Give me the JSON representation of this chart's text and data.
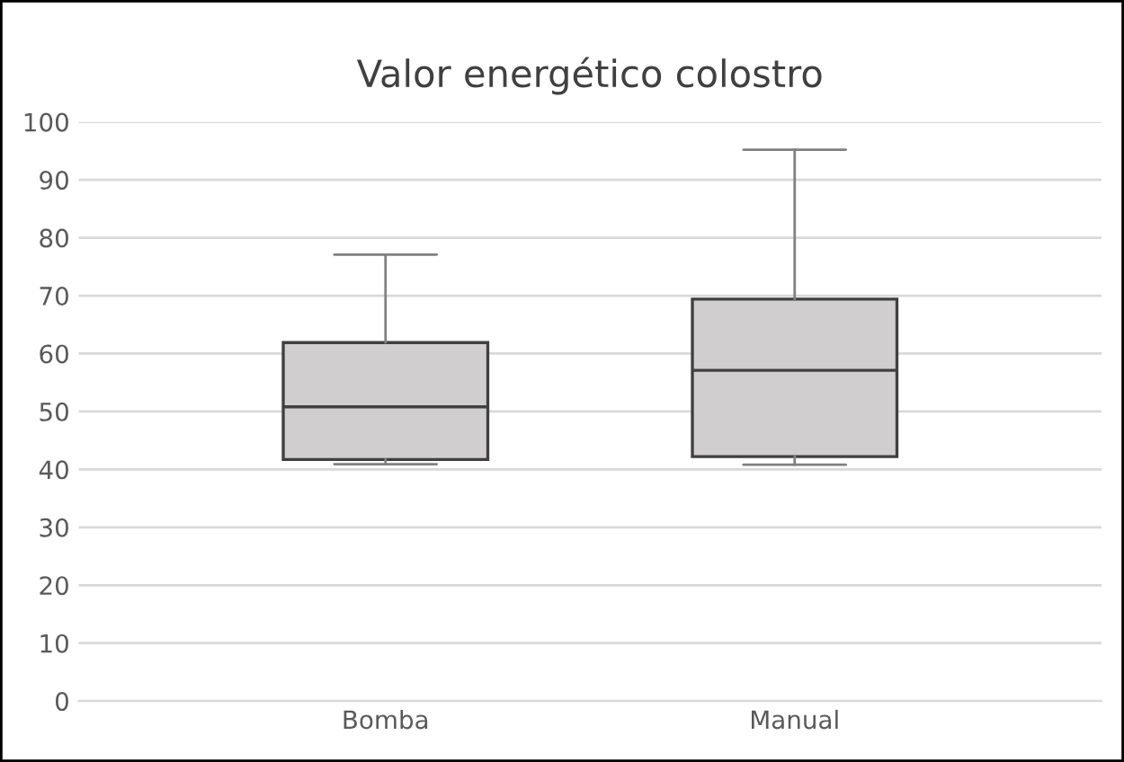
{
  "chart_data": {
    "type": "box",
    "title": "Valor energético colostro",
    "categories": [
      "Bomba",
      "Manual"
    ],
    "boxes": [
      {
        "low": 40.9,
        "q1": 41.7,
        "median": 50.8,
        "q3": 61.9,
        "high": 77.1
      },
      {
        "low": 40.8,
        "q1": 42.2,
        "median": 57.1,
        "q3": 69.4,
        "high": 95.2
      }
    ],
    "color": "#d0cece",
    "ylim": [
      0,
      100
    ],
    "yticks": [
      0,
      10,
      20,
      30,
      40,
      50,
      60,
      70,
      80,
      90,
      100
    ],
    "grid": "y",
    "legend": false
  }
}
